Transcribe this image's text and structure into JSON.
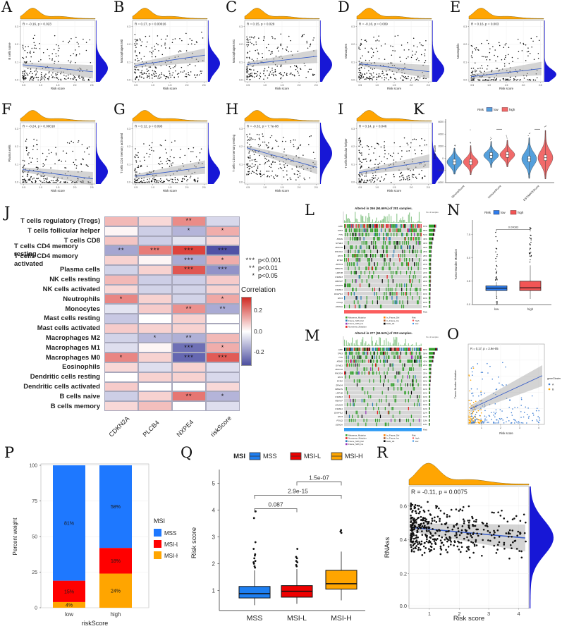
{
  "chart_data": [
    {
      "panel": "A",
      "type": "scatter",
      "stats": "R = -0.16, p = 0.023",
      "xlabel": "Risk score",
      "ylabel": "B cells naive",
      "r": -0.16,
      "xticks": [
        "0.5",
        "1.0",
        "1.5",
        "2.0",
        "2.5"
      ],
      "yticks": [
        "0.0",
        "0.1",
        "0.2",
        "0.3"
      ],
      "label": "A"
    },
    {
      "panel": "B",
      "type": "scatter",
      "stats": "R = 0.27, p = 0.00016",
      "xlabel": "Risk score",
      "ylabel": "Macrophages M0",
      "r": 0.27,
      "xticks": [
        "0.5",
        "1.0",
        "1.5",
        "2.0",
        "2.5"
      ],
      "yticks": [
        "0.0",
        "0.1",
        "0.2",
        "0.3"
      ],
      "label": "B"
    },
    {
      "panel": "C",
      "type": "scatter",
      "stats": "R = 0.15, p = 0.029",
      "xlabel": "Risk score",
      "ylabel": "Macrophages M1",
      "r": 0.15,
      "xticks": [
        "0.5",
        "1.0",
        "1.5",
        "2.0",
        "2.5"
      ],
      "yticks": [
        "0.0",
        "0.1",
        "0.2",
        "0.3"
      ],
      "label": "C"
    },
    {
      "panel": "D",
      "type": "scatter",
      "stats": "R = -0.16, p = 0.009",
      "xlabel": "Risk score",
      "ylabel": "Monocytes",
      "r": -0.16,
      "xticks": [
        "0.5",
        "1.0",
        "1.5",
        "2.0",
        "2.5"
      ],
      "yticks": [
        "0.0",
        "0.1",
        "0.2",
        "0.3"
      ],
      "label": "D"
    },
    {
      "panel": "E",
      "type": "scatter",
      "stats": "R = 0.16, p = 0.003",
      "xlabel": "Risk score",
      "ylabel": "Neutrophils",
      "r": 0.16,
      "xticks": [
        "0.5",
        "1.0",
        "1.5",
        "2.0",
        "2.5"
      ],
      "yticks": [
        "0.0",
        "0.1",
        "0.2",
        "0.3"
      ],
      "label": "E"
    },
    {
      "panel": "F",
      "type": "scatter",
      "stats": "R = -0.24, p = 0.00018",
      "xlabel": "Risk score",
      "ylabel": "Plasma cells",
      "r": -0.24,
      "xticks": [
        "0.5",
        "1.0",
        "1.5",
        "2.0",
        "2.5"
      ],
      "yticks": [
        "0.0",
        "0.1",
        "0.2",
        "0.3"
      ],
      "label": "F"
    },
    {
      "panel": "G",
      "type": "scatter",
      "stats": "R = 0.12, p = 0.093",
      "xlabel": "Risk score",
      "ylabel": "T cells CD4 memory activated",
      "r": 0.12,
      "xticks": [
        "0.5",
        "1.0",
        "1.5",
        "2.0",
        "2.5"
      ],
      "yticks": [
        "0.0",
        "0.1",
        "0.2",
        "0.3"
      ],
      "label": "G"
    },
    {
      "panel": "H",
      "type": "scatter",
      "stats": "R = -0.32, p = 7.7e-08",
      "xlabel": "Risk score",
      "ylabel": "T cells CD4 memory resting",
      "r": -0.32,
      "xticks": [
        "0.5",
        "1.0",
        "1.5",
        "2.0",
        "2.5"
      ],
      "yticks": [
        "0.0",
        "0.1",
        "0.2",
        "0.3"
      ],
      "label": "H"
    },
    {
      "panel": "I",
      "type": "scatter",
      "stats": "R = 0.14, p = 0.046",
      "xlabel": "Risk score",
      "ylabel": "T cells follicular helper",
      "r": 0.14,
      "xticks": [
        "0.5",
        "1.0",
        "1.5",
        "2.0",
        "2.5"
      ],
      "yticks": [
        "0.0",
        "0.1",
        "0.2",
        "0.3"
      ],
      "label": "I"
    },
    {
      "panel": "K",
      "type": "violin",
      "label": "K",
      "legend_title": "Risk",
      "legend": [
        {
          "name": "low",
          "color": "#55a0dc"
        },
        {
          "name": "high",
          "color": "#f16a6a"
        }
      ],
      "ylabel": "TME score",
      "ylim": [
        -4000,
        6000
      ],
      "yticks": [
        "-4000",
        "-2000",
        "0",
        "2000",
        "4000",
        "6000"
      ],
      "categories": [
        "StromalScore",
        "ImmuneScore",
        "ESTIMATEScore"
      ],
      "series": [
        {
          "group": "StromalScore",
          "risk": "low",
          "center": -600,
          "spread": 1100,
          "range": [
            -2600,
            1700
          ]
        },
        {
          "group": "StromalScore",
          "risk": "high",
          "center": -600,
          "spread": 1000,
          "range": [
            -2700,
            2100
          ]
        },
        {
          "group": "ImmuneScore",
          "risk": "low",
          "center": 500,
          "spread": 900,
          "range": [
            -1500,
            2800
          ]
        },
        {
          "group": "ImmuneScore",
          "risk": "high",
          "center": 600,
          "spread": 1000,
          "range": [
            -1400,
            3000
          ]
        },
        {
          "group": "ESTIMATEScore",
          "risk": "low",
          "center": -100,
          "spread": 1500,
          "range": [
            -3300,
            3400
          ]
        },
        {
          "group": "ESTIMATEScore",
          "risk": "high",
          "center": 100,
          "spread": 1700,
          "range": [
            -3400,
            4600
          ]
        }
      ]
    },
    {
      "panel": "J",
      "type": "heatmap",
      "label": "J",
      "rows": [
        "T cells regulatory (Tregs)",
        "T cells follicular helper",
        "T cells CD8",
        "T cells CD4 memory resting",
        "T cells CD4 memory activated",
        "Plasma cells",
        "NK cells resting",
        "NK cells activated",
        "Neutrophils",
        "Monocytes",
        "Mast cells resting",
        "Mast cells activated",
        "Macrophages M2",
        "Macrophages M1",
        "Macrophages M0",
        "Eosinophils",
        "Dendritic cells resting",
        "Dendritic cells activated",
        "B cells naive",
        "B cells memory"
      ],
      "cols": [
        "CDKN2A",
        "PLCB4",
        "NXPE4",
        "riskScore"
      ],
      "values": [
        [
          0.1,
          0.05,
          0.18,
          -0.06
        ],
        [
          0.01,
          -0.08,
          -0.13,
          0.12
        ],
        [
          0.08,
          -0.08,
          -0.04,
          0.05
        ],
        [
          -0.16,
          0.21,
          0.32,
          -0.35
        ],
        [
          0.06,
          0.01,
          -0.15,
          0.12
        ],
        [
          -0.07,
          0.06,
          0.28,
          -0.2
        ],
        [
          0.1,
          -0.08,
          -0.08,
          0.07
        ],
        [
          0.05,
          -0.07,
          -0.07,
          0.06
        ],
        [
          0.19,
          0.06,
          -0.07,
          0.13
        ],
        [
          -0.04,
          0.07,
          0.17,
          -0.15
        ],
        [
          -0.09,
          0.0,
          0.06,
          0.0
        ],
        [
          0.07,
          0.06,
          0.06,
          0.0
        ],
        [
          -0.07,
          -0.12,
          -0.14,
          0.1
        ],
        [
          -0.05,
          0.01,
          -0.28,
          0.12
        ],
        [
          0.19,
          0.06,
          -0.3,
          0.27
        ],
        [
          0.05,
          -0.05,
          0.06,
          -0.05
        ],
        [
          0.0,
          0.06,
          0.06,
          -0.06
        ],
        [
          0.07,
          0.0,
          0.0,
          0.05
        ],
        [
          -0.08,
          0.06,
          0.22,
          -0.13
        ],
        [
          0.05,
          0.09,
          0.0,
          -0.05
        ]
      ],
      "sig": [
        [
          "",
          "",
          "**",
          ""
        ],
        [
          "",
          "",
          "*",
          "*"
        ],
        [
          "",
          "",
          "",
          ""
        ],
        [
          "**",
          "***",
          "***",
          "***"
        ],
        [
          "",
          "",
          "***",
          "*"
        ],
        [
          "",
          "",
          "***",
          "***"
        ],
        [
          "",
          "",
          "",
          ""
        ],
        [
          "",
          "",
          "",
          ""
        ],
        [
          "*",
          "",
          "",
          "*"
        ],
        [
          "",
          "",
          "**",
          "**"
        ],
        [
          "",
          "",
          "",
          ""
        ],
        [
          "",
          "",
          "",
          ""
        ],
        [
          "",
          "*",
          "**",
          ""
        ],
        [
          "",
          "",
          "***",
          "*"
        ],
        [
          "*",
          "",
          "***",
          "***"
        ],
        [
          "",
          "",
          "",
          ""
        ],
        [
          "",
          "",
          "",
          ""
        ],
        [
          "",
          "",
          "",
          ""
        ],
        [
          "",
          "",
          "**",
          "*"
        ],
        [
          "",
          "",
          "",
          ""
        ]
      ],
      "sig_legend": [
        {
          "stars": "***",
          "label": "p<0.001"
        },
        {
          "stars": "**",
          "label": "p<0.01"
        },
        {
          "stars": "*",
          "label": "p<0.05"
        }
      ],
      "legend_title": "Correlation",
      "colorbar_ticks": [
        "0.2",
        "0.0",
        "-0.2"
      ]
    },
    {
      "panel": "L",
      "type": "oncoprint",
      "label": "L",
      "title": "Altered in 266 (94.66%) of 281 samples.",
      "right_axis": "No. of samples",
      "genes": [
        "APC",
        "TP53",
        "TTN",
        "KRAS",
        "SYNE1",
        "MUC16",
        "PIK3CA",
        "FAT4",
        "RYR2",
        "ZFHX4",
        "OBSCN",
        "LRP1B",
        "CSMD3",
        "FBXW7",
        "DNAH5",
        "CSMD1",
        "DNAH11",
        "FAT3",
        "POLQ",
        "USH2A"
      ],
      "pcts": [
        "67%",
        "58%",
        "51%",
        "43%",
        "34%",
        "30%",
        "25%",
        "25%",
        "22%",
        "21%",
        "21%",
        "21%",
        "20%",
        "20%",
        "18%",
        "18%",
        "16%",
        "16%",
        "15%",
        "15%"
      ],
      "legend": [
        {
          "l": "Missense_Mutation",
          "c": "#33A02C"
        },
        {
          "l": "Frame_Shift_Del",
          "c": "#1F78B4"
        },
        {
          "l": "Frame_Shift_Ins",
          "c": "#9632B8"
        },
        {
          "l": "Nonsense_Mutation",
          "c": "#E31A1C"
        },
        {
          "l": "In_Frame_Del",
          "c": "#FF7F00"
        },
        {
          "l": "In_Frame_Ins",
          "c": "#A65628"
        },
        {
          "l": "Multi_Hit",
          "c": "#000000"
        }
      ],
      "risk_title": "Risk",
      "risk_items": [
        {
          "l": "high",
          "c": "#FC4E4E"
        },
        {
          "l": "low",
          "c": "#3F97E8"
        }
      ],
      "band_label": "Risk",
      "band_color": "#FB5D5D"
    },
    {
      "panel": "M",
      "type": "oncoprint",
      "label": "M",
      "title": "Altered in 277 (94.54%) of 293 samples.",
      "right_axis": "No. of samples",
      "genes": [
        "APC",
        "TP53",
        "TTN",
        "KRAS",
        "SYNE1",
        "MUC16",
        "PIK3CA",
        "FAT4",
        "RYR2",
        "ZFHX4",
        "OBSCN",
        "LRP1B",
        "CSMD3",
        "FBXW7",
        "DNAH5",
        "CSMD1",
        "DNAH11",
        "FAT3",
        "POLQ",
        "USH2A"
      ],
      "pcts": [
        "80%",
        "56%",
        "47%",
        "42%",
        "25%",
        "23%",
        "23%",
        "20%",
        "18%",
        "15%",
        "14%",
        "13%",
        "13%",
        "13%",
        "13%",
        "12%",
        "12%",
        "12%",
        "11%",
        "11%"
      ],
      "legend": [
        {
          "l": "Missense_Mutation",
          "c": "#33A02C"
        },
        {
          "l": "Nonsense_Mutation",
          "c": "#E31A1C"
        },
        {
          "l": "Frame_Shift_Del",
          "c": "#1F78B4"
        },
        {
          "l": "Frame_Shift_Ins",
          "c": "#9632B8"
        },
        {
          "l": "In_Frame_Del",
          "c": "#FF7F00"
        },
        {
          "l": "In_Frame_Ins",
          "c": "#A65628"
        },
        {
          "l": "Multi_Hit",
          "c": "#000000"
        }
      ],
      "risk_title": "Risk",
      "risk_items": [
        {
          "l": "high",
          "c": "#FC4E4E"
        },
        {
          "l": "low",
          "c": "#3F97E8"
        }
      ],
      "band_label": "Risk",
      "band_color": "#2E9BF5"
    },
    {
      "panel": "N",
      "type": "box",
      "label": "N",
      "legend_title": "Risk",
      "legend": [
        {
          "name": "low",
          "color": "#2f7ded"
        },
        {
          "name": "high",
          "color": "#f25555"
        }
      ],
      "ylabel": "Tumor Burden Mutation",
      "yticks": [
        "0.0",
        "2.5",
        "5.0",
        "7.5"
      ],
      "categories": [
        "low",
        "high"
      ],
      "pvalue": "0.00083",
      "boxes": [
        {
          "name": "low",
          "q1": 1.5,
          "median": 1.75,
          "q3": 2.0,
          "lo": 0.9,
          "hi": 2.4
        },
        {
          "name": "high",
          "q1": 1.5,
          "median": 1.8,
          "q3": 2.5,
          "lo": 0.6,
          "hi": 4.2
        }
      ]
    },
    {
      "panel": "O",
      "type": "scatter",
      "label": "O",
      "stats": "R = 0.17, p = 2.9e-05",
      "xlabel": "Risk score",
      "ylabel": "Tumor Burden Mutation",
      "legend_title": "geneCluster",
      "legend": [
        {
          "name": "A",
          "color": "#3f7fd4"
        },
        {
          "name": "B",
          "color": "#ffa500"
        }
      ],
      "xticks": [
        "1",
        "2",
        "3",
        "4"
      ],
      "r": 0.17
    },
    {
      "panel": "P",
      "type": "bar",
      "label": "P",
      "ylabel": "Percent weight",
      "xlabel": "riskScore",
      "yticks": [
        "0",
        "25",
        "50",
        "75",
        "100"
      ],
      "categories": [
        "low",
        "high"
      ],
      "legend_title": "MSI",
      "series": [
        {
          "name": "MSS",
          "color": "#1E78FF"
        },
        {
          "name": "MSI-L",
          "color": "#FF0000"
        },
        {
          "name": "MSI-H",
          "color": "#FFA500"
        }
      ],
      "values": {
        "low": {
          "MSS": 81,
          "MSI-L": 15,
          "MSI-H": 4
        },
        "high": {
          "MSS": 58,
          "MSI-L": 18,
          "MSI-H": 24
        }
      },
      "labels": {
        "low": [
          "81%",
          "15%",
          "4%"
        ],
        "high": [
          "58%",
          "18%",
          "24%"
        ]
      }
    },
    {
      "panel": "Q",
      "type": "box",
      "label": "Q",
      "legend_title": "MSI",
      "legend": [
        {
          "name": "MSS",
          "color": "#1E7FF2"
        },
        {
          "name": "MSI-L",
          "color": "#EE0000"
        },
        {
          "name": "MSI-H",
          "color": "#FFA500"
        }
      ],
      "ylabel": "Risk score",
      "yticks": [
        "1",
        "2",
        "3",
        "4",
        "5"
      ],
      "categories": [
        "MSS",
        "MSI-L",
        "MSI-H"
      ],
      "comparisons": [
        {
          "a": "MSS",
          "b": "MSI-L",
          "p": "0.087"
        },
        {
          "a": "MSS",
          "b": "MSI-H",
          "p": "2.9e-15"
        },
        {
          "a": "MSI-L",
          "b": "MSI-H",
          "p": "1.5e-07"
        }
      ],
      "boxes": [
        {
          "name": "MSS",
          "q1": 0.72,
          "median": 0.88,
          "q3": 1.15,
          "lo": 0.45,
          "hi": 1.75,
          "outliers": [
            1.85,
            1.9,
            2.0,
            2.05,
            2.1,
            2.2,
            2.3,
            2.35,
            2.55,
            2.8,
            3.7,
            3.95
          ]
        },
        {
          "name": "MSI-L",
          "q1": 0.75,
          "median": 0.97,
          "q3": 1.18,
          "lo": 0.5,
          "hi": 1.8,
          "outliers": [
            1.9,
            1.95,
            2.05,
            2.1,
            2.2,
            2.25,
            2.55
          ]
        },
        {
          "name": "MSI-H",
          "q1": 1.05,
          "median": 1.25,
          "q3": 1.75,
          "lo": 0.63,
          "hi": 2.45,
          "outliers": [
            3.15,
            3.2,
            3.25
          ]
        }
      ]
    },
    {
      "panel": "R",
      "type": "scatter",
      "label": "R",
      "stats": "R = -0.11, p = 0.0075",
      "xlabel": "Risk score",
      "ylabel": "RNAss",
      "r": -0.11,
      "xticks": [
        "1",
        "2",
        "3",
        "4"
      ],
      "yticks": [
        "0.0",
        "0.2",
        "0.4",
        "0.6"
      ]
    }
  ]
}
